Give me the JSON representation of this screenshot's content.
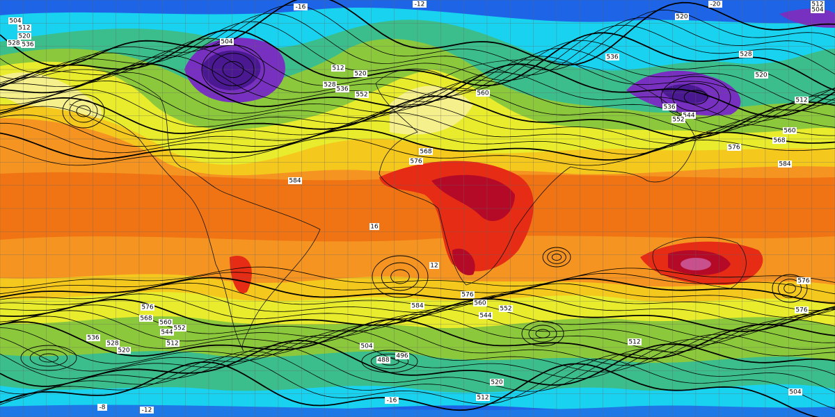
{
  "map": {
    "contour_labels": [
      "504",
      "512",
      "520",
      "528",
      "536",
      "504",
      "512",
      "520",
      "528",
      "536",
      "552",
      "560",
      "568",
      "576",
      "584",
      "584",
      "576",
      "568",
      "560",
      "520",
      "512",
      "504",
      "528",
      "536",
      "520",
      "512",
      "536",
      "544",
      "552",
      "-16",
      "-12",
      "-20",
      "576",
      "568",
      "560",
      "552",
      "544",
      "512",
      "536",
      "528",
      "520",
      "584",
      "560",
      "552",
      "544",
      "576",
      "504",
      "488",
      "496",
      "520",
      "512",
      "512",
      "576",
      "576",
      "16",
      "12",
      "-16",
      "-12",
      "-8",
      "504"
    ]
  }
}
